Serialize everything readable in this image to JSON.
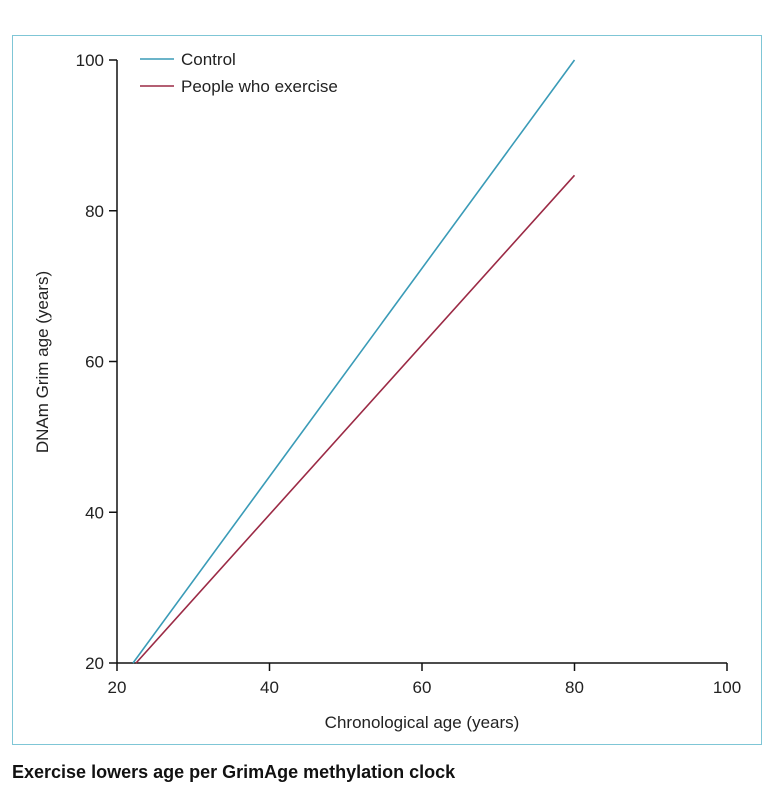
{
  "chart_data": {
    "type": "line",
    "title": "Exercise lowers age per GrimAge methylation clock",
    "xlabel": "Chronological age (years)",
    "ylabel": "DNAm Grim age (years)",
    "xlim": [
      20,
      100
    ],
    "ylim": [
      20,
      100
    ],
    "xticks": [
      20,
      40,
      60,
      80,
      100
    ],
    "yticks": [
      20,
      40,
      60,
      80,
      100
    ],
    "grid": false,
    "legend_position": "top-left",
    "series": [
      {
        "name": "Control",
        "color": "#3a9bb7",
        "x": [
          22.1,
          80
        ],
        "y": [
          20,
          100
        ]
      },
      {
        "name": "People who exercise",
        "color": "#9b2a45",
        "x": [
          22.5,
          80
        ],
        "y": [
          20,
          84.7
        ]
      }
    ]
  }
}
